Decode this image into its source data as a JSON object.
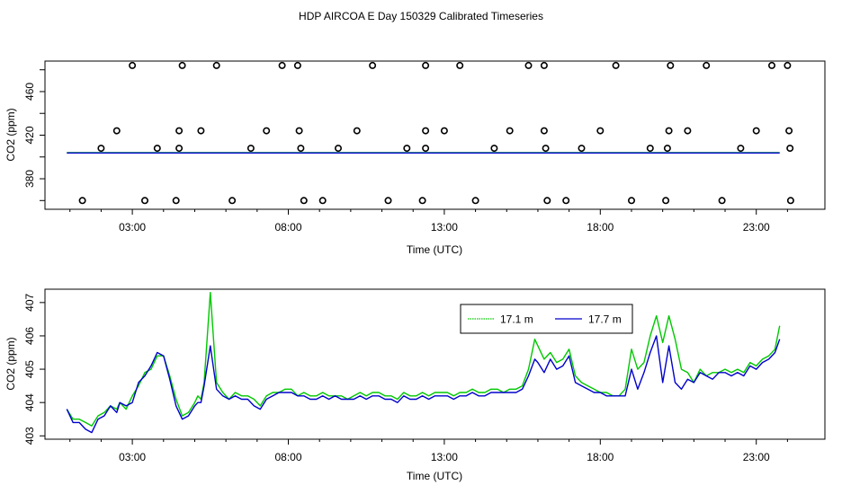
{
  "title": "HDP AIRCOA E  Day 150329  Calibrated Timeseries",
  "chart_data": [
    {
      "type": "scatter",
      "xlabel": "Time (UTC)",
      "ylabel": "CO2 (ppm)",
      "xlim": [
        0.2,
        25.2
      ],
      "ylim": [
        352,
        488
      ],
      "x_ticks": [
        3,
        8,
        13,
        18,
        23
      ],
      "x_tick_labels": [
        "03:00",
        "08:00",
        "13:00",
        "18:00",
        "23:00"
      ],
      "y_ticks": [
        380,
        420,
        460
      ],
      "y_tick_labels": [
        "380",
        "420",
        "460"
      ],
      "grid": false,
      "series": [
        {
          "color": "#00c800",
          "x": [
            0.9,
            23.75
          ],
          "y": [
            403.9,
            403.9
          ]
        },
        {
          "color": "#0000cc",
          "x": [
            0.9,
            23.75
          ],
          "y": [
            403.7,
            403.7
          ]
        }
      ],
      "points": [
        {
          "x": 1.4,
          "y": 360
        },
        {
          "x": 2.0,
          "y": 408
        },
        {
          "x": 2.5,
          "y": 424
        },
        {
          "x": 3.0,
          "y": 484
        },
        {
          "x": 3.4,
          "y": 360
        },
        {
          "x": 3.8,
          "y": 408
        },
        {
          "x": 4.4,
          "y": 360
        },
        {
          "x": 4.5,
          "y": 408
        },
        {
          "x": 4.5,
          "y": 424
        },
        {
          "x": 4.6,
          "y": 484
        },
        {
          "x": 5.2,
          "y": 424
        },
        {
          "x": 5.7,
          "y": 484
        },
        {
          "x": 6.2,
          "y": 360
        },
        {
          "x": 6.8,
          "y": 408
        },
        {
          "x": 7.3,
          "y": 424
        },
        {
          "x": 7.8,
          "y": 484
        },
        {
          "x": 8.3,
          "y": 484
        },
        {
          "x": 8.35,
          "y": 424
        },
        {
          "x": 8.4,
          "y": 408
        },
        {
          "x": 8.5,
          "y": 360
        },
        {
          "x": 9.1,
          "y": 360
        },
        {
          "x": 9.6,
          "y": 408
        },
        {
          "x": 10.2,
          "y": 424
        },
        {
          "x": 10.7,
          "y": 484
        },
        {
          "x": 11.2,
          "y": 360
        },
        {
          "x": 11.8,
          "y": 408
        },
        {
          "x": 12.3,
          "y": 360
        },
        {
          "x": 12.4,
          "y": 408
        },
        {
          "x": 12.4,
          "y": 424
        },
        {
          "x": 12.4,
          "y": 484
        },
        {
          "x": 13.0,
          "y": 424
        },
        {
          "x": 13.5,
          "y": 484
        },
        {
          "x": 14.0,
          "y": 360
        },
        {
          "x": 14.6,
          "y": 408
        },
        {
          "x": 15.1,
          "y": 424
        },
        {
          "x": 15.7,
          "y": 484
        },
        {
          "x": 16.2,
          "y": 484
        },
        {
          "x": 16.2,
          "y": 424
        },
        {
          "x": 16.25,
          "y": 408
        },
        {
          "x": 16.3,
          "y": 360
        },
        {
          "x": 16.9,
          "y": 360
        },
        {
          "x": 17.4,
          "y": 408
        },
        {
          "x": 18.0,
          "y": 424
        },
        {
          "x": 18.5,
          "y": 484
        },
        {
          "x": 19.0,
          "y": 360
        },
        {
          "x": 19.6,
          "y": 408
        },
        {
          "x": 20.1,
          "y": 360
        },
        {
          "x": 20.15,
          "y": 408
        },
        {
          "x": 20.2,
          "y": 424
        },
        {
          "x": 20.25,
          "y": 484
        },
        {
          "x": 20.8,
          "y": 424
        },
        {
          "x": 21.4,
          "y": 484
        },
        {
          "x": 21.9,
          "y": 360
        },
        {
          "x": 22.5,
          "y": 408
        },
        {
          "x": 23.0,
          "y": 424
        },
        {
          "x": 23.5,
          "y": 484
        },
        {
          "x": 24.0,
          "y": 484
        },
        {
          "x": 24.05,
          "y": 424
        },
        {
          "x": 24.08,
          "y": 408
        },
        {
          "x": 24.1,
          "y": 360
        }
      ]
    },
    {
      "type": "line",
      "xlabel": "Time (UTC)",
      "ylabel": "CO2 (ppm)",
      "xlim": [
        0.2,
        25.2
      ],
      "ylim": [
        402.9,
        407.4
      ],
      "x_ticks": [
        3,
        8,
        13,
        18,
        23
      ],
      "x_tick_labels": [
        "03:00",
        "08:00",
        "13:00",
        "18:00",
        "23:00"
      ],
      "y_ticks": [
        403,
        404,
        405,
        406,
        407
      ],
      "y_tick_labels": [
        "403",
        "404",
        "405",
        "406",
        "407"
      ],
      "grid": false,
      "legend": "top-right",
      "series": [
        {
          "name": "17.1 m",
          "color": "#00c800",
          "x": [
            0.9,
            1.1,
            1.3,
            1.5,
            1.7,
            1.9,
            2.1,
            2.3,
            2.5,
            2.6,
            2.8,
            3.0,
            3.2,
            3.4,
            3.6,
            3.8,
            4.0,
            4.2,
            4.4,
            4.6,
            4.8,
            5.0,
            5.1,
            5.2,
            5.3,
            5.5,
            5.7,
            5.9,
            6.1,
            6.3,
            6.5,
            6.7,
            6.9,
            7.1,
            7.3,
            7.5,
            7.7,
            7.9,
            8.1,
            8.3,
            8.5,
            8.7,
            8.9,
            9.1,
            9.3,
            9.5,
            9.7,
            9.9,
            10.1,
            10.3,
            10.5,
            10.7,
            10.9,
            11.1,
            11.3,
            11.5,
            11.7,
            11.9,
            12.1,
            12.3,
            12.5,
            12.7,
            12.9,
            13.1,
            13.3,
            13.5,
            13.7,
            13.9,
            14.1,
            14.3,
            14.5,
            14.7,
            14.9,
            15.1,
            15.3,
            15.5,
            15.7,
            15.9,
            16.0,
            16.2,
            16.4,
            16.6,
            16.8,
            17.0,
            17.2,
            17.4,
            17.6,
            17.8,
            18.0,
            18.2,
            18.4,
            18.6,
            18.8,
            19.0,
            19.2,
            19.4,
            19.6,
            19.8,
            20.0,
            20.2,
            20.4,
            20.6,
            20.8,
            21.0,
            21.2,
            21.4,
            21.6,
            21.8,
            22.0,
            22.2,
            22.4,
            22.6,
            22.8,
            23.0,
            23.2,
            23.4,
            23.6,
            23.75
          ],
          "y": [
            403.8,
            403.5,
            403.5,
            403.4,
            403.3,
            403.6,
            403.7,
            403.9,
            403.8,
            404.0,
            403.8,
            404.2,
            404.5,
            404.9,
            405.0,
            405.4,
            405.4,
            404.8,
            404.1,
            403.6,
            403.7,
            404.0,
            404.2,
            404.1,
            404.6,
            407.3,
            404.6,
            404.3,
            404.1,
            404.3,
            404.2,
            404.2,
            404.1,
            403.9,
            404.2,
            404.3,
            404.3,
            404.4,
            404.4,
            404.2,
            404.3,
            404.2,
            404.2,
            404.3,
            404.2,
            404.2,
            404.2,
            404.1,
            404.2,
            404.3,
            404.2,
            404.3,
            404.3,
            404.2,
            404.2,
            404.1,
            404.3,
            404.2,
            404.2,
            404.3,
            404.2,
            404.3,
            404.3,
            404.3,
            404.2,
            404.3,
            404.3,
            404.4,
            404.3,
            404.3,
            404.4,
            404.4,
            404.3,
            404.4,
            404.4,
            404.5,
            405.0,
            405.9,
            405.7,
            405.3,
            405.5,
            405.2,
            405.3,
            405.6,
            404.8,
            404.6,
            404.5,
            404.4,
            404.3,
            404.3,
            404.2,
            404.2,
            404.4,
            405.6,
            405.0,
            405.2,
            406.0,
            406.6,
            405.8,
            406.6,
            405.9,
            405.0,
            404.9,
            404.6,
            405.0,
            404.8,
            404.9,
            404.9,
            405.0,
            404.9,
            405.0,
            404.9,
            405.2,
            405.1,
            405.3,
            405.4,
            405.6,
            406.3
          ]
        },
        {
          "name": "17.7 m",
          "color": "#0000cc",
          "x": [
            0.9,
            1.1,
            1.3,
            1.5,
            1.7,
            1.9,
            2.1,
            2.3,
            2.5,
            2.6,
            2.8,
            3.0,
            3.2,
            3.4,
            3.6,
            3.8,
            4.0,
            4.2,
            4.4,
            4.6,
            4.8,
            5.0,
            5.1,
            5.2,
            5.3,
            5.5,
            5.7,
            5.9,
            6.1,
            6.3,
            6.5,
            6.7,
            6.9,
            7.1,
            7.3,
            7.5,
            7.7,
            7.9,
            8.1,
            8.3,
            8.5,
            8.7,
            8.9,
            9.1,
            9.3,
            9.5,
            9.7,
            9.9,
            10.1,
            10.3,
            10.5,
            10.7,
            10.9,
            11.1,
            11.3,
            11.5,
            11.7,
            11.9,
            12.1,
            12.3,
            12.5,
            12.7,
            12.9,
            13.1,
            13.3,
            13.5,
            13.7,
            13.9,
            14.1,
            14.3,
            14.5,
            14.7,
            14.9,
            15.1,
            15.3,
            15.5,
            15.7,
            15.9,
            16.0,
            16.2,
            16.4,
            16.6,
            16.8,
            17.0,
            17.2,
            17.4,
            17.6,
            17.8,
            18.0,
            18.2,
            18.4,
            18.6,
            18.8,
            19.0,
            19.2,
            19.4,
            19.6,
            19.8,
            20.0,
            20.2,
            20.4,
            20.6,
            20.8,
            21.0,
            21.2,
            21.4,
            21.6,
            21.8,
            22.0,
            22.2,
            22.4,
            22.6,
            22.8,
            23.0,
            23.2,
            23.4,
            23.6,
            23.75
          ],
          "y": [
            403.8,
            403.4,
            403.4,
            403.2,
            403.1,
            403.5,
            403.6,
            403.9,
            403.7,
            404.0,
            403.9,
            404.0,
            404.6,
            404.8,
            405.1,
            405.5,
            405.4,
            404.7,
            403.9,
            403.5,
            403.6,
            403.9,
            404.0,
            404.0,
            404.5,
            405.7,
            404.4,
            404.2,
            404.1,
            404.2,
            404.1,
            404.1,
            403.9,
            403.8,
            404.1,
            404.2,
            404.3,
            404.3,
            404.3,
            404.2,
            404.2,
            404.1,
            404.1,
            404.2,
            404.1,
            404.2,
            404.1,
            404.1,
            404.1,
            404.2,
            404.1,
            404.2,
            404.2,
            404.1,
            404.1,
            404.0,
            404.2,
            404.1,
            404.1,
            404.2,
            404.1,
            404.2,
            404.2,
            404.2,
            404.1,
            404.2,
            404.2,
            404.3,
            404.2,
            404.2,
            404.3,
            404.3,
            404.3,
            404.3,
            404.3,
            404.4,
            404.8,
            405.3,
            405.2,
            404.9,
            405.3,
            405.0,
            405.1,
            405.4,
            404.6,
            404.5,
            404.4,
            404.3,
            404.3,
            404.2,
            404.2,
            404.2,
            404.2,
            405.0,
            404.4,
            404.9,
            405.5,
            406.0,
            404.6,
            405.7,
            404.6,
            404.4,
            404.7,
            404.6,
            404.9,
            404.8,
            404.7,
            404.9,
            404.9,
            404.8,
            404.9,
            404.8,
            405.1,
            405.0,
            405.2,
            405.3,
            405.5,
            405.9
          ]
        }
      ]
    }
  ]
}
